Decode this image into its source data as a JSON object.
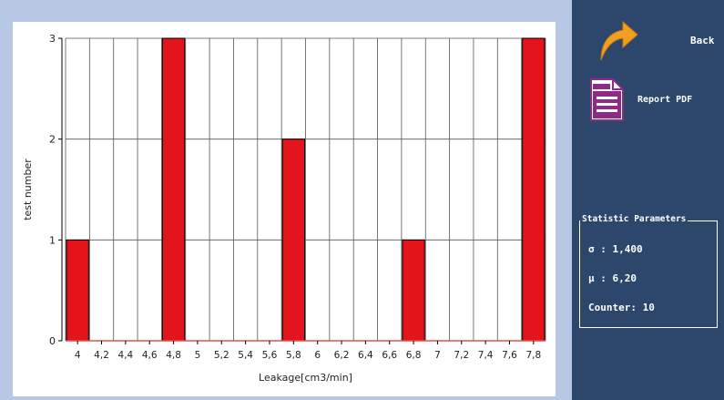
{
  "chart_data": {
    "type": "bar",
    "title": "",
    "xlabel": "Leakage[cm3/min]",
    "ylabel": "test number",
    "categories": [
      "4",
      "4,2",
      "4,4",
      "4,6",
      "4,8",
      "5",
      "5,2",
      "5,4",
      "5,6",
      "5,8",
      "6",
      "6,2",
      "6,4",
      "6,6",
      "6,8",
      "7",
      "7,2",
      "7,4",
      "7,6",
      "7,8"
    ],
    "values": [
      1,
      0,
      0,
      0,
      3,
      0,
      0,
      0,
      0,
      2,
      0,
      0,
      0,
      0,
      1,
      0,
      0,
      0,
      0,
      3
    ],
    "yticks": [
      "0",
      "1",
      "2",
      "3"
    ],
    "ylim": [
      0,
      3
    ],
    "grid": true,
    "bar_color": "#e3141b",
    "baseline_color": "#e05252"
  },
  "sidebar": {
    "back_label": "Back",
    "back_icon": "curved-arrow-icon",
    "back_icon_color": "#f0a020",
    "pdf_label": "Report PDF",
    "pdf_icon": "document-icon",
    "pdf_icon_color": "#8e2a87",
    "stats_title": "Statistic Parameters",
    "stats": {
      "sigma": "σ : 1,400",
      "mu": "μ : 6,20",
      "counter": "Counter: 10"
    }
  }
}
